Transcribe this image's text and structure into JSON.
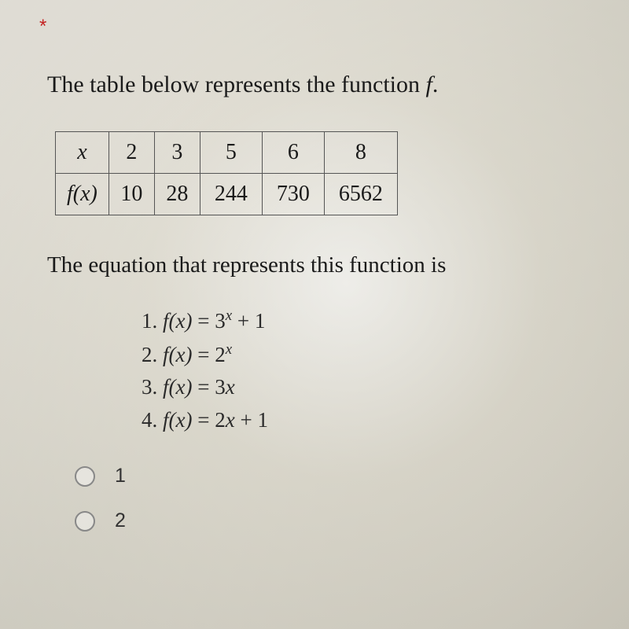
{
  "asterisk": "*",
  "prompt_before": "The table below represents the function ",
  "prompt_fn": "f",
  "prompt_after": ".",
  "table": {
    "row1_header": "x",
    "row2_header": "f(x)",
    "x_values": [
      "2",
      "3",
      "5",
      "6",
      "8"
    ],
    "fx_values": [
      "10",
      "28",
      "244",
      "730",
      "6562"
    ]
  },
  "question": "The equation that represents this function is",
  "options": [
    {
      "num": "1.",
      "lhs": "f(x)",
      "rhs_base": "3",
      "rhs_sup": "x",
      "rhs_tail": " + 1"
    },
    {
      "num": "2.",
      "lhs": "f(x)",
      "rhs_base": "2",
      "rhs_sup": "x",
      "rhs_tail": ""
    },
    {
      "num": "3.",
      "lhs": "f(x)",
      "rhs_base": "3",
      "rhs_sup": "",
      "rhs_tail": "x"
    },
    {
      "num": "4.",
      "lhs": "f(x)",
      "rhs_base": "2",
      "rhs_sup": "",
      "rhs_tail": "x + 1"
    }
  ],
  "radios": [
    "1",
    "2"
  ],
  "colors": {
    "asterisk": "#c42020",
    "text": "#1a1a1a",
    "border": "#555555",
    "radio_border": "#888888",
    "background_light": "#e8e6e0",
    "background_dark": "#c8c5ba"
  },
  "fonts": {
    "body": "Times New Roman",
    "controls": "Arial",
    "prompt_size": 30,
    "table_size": 28,
    "option_size": 27,
    "radio_label_size": 25
  }
}
